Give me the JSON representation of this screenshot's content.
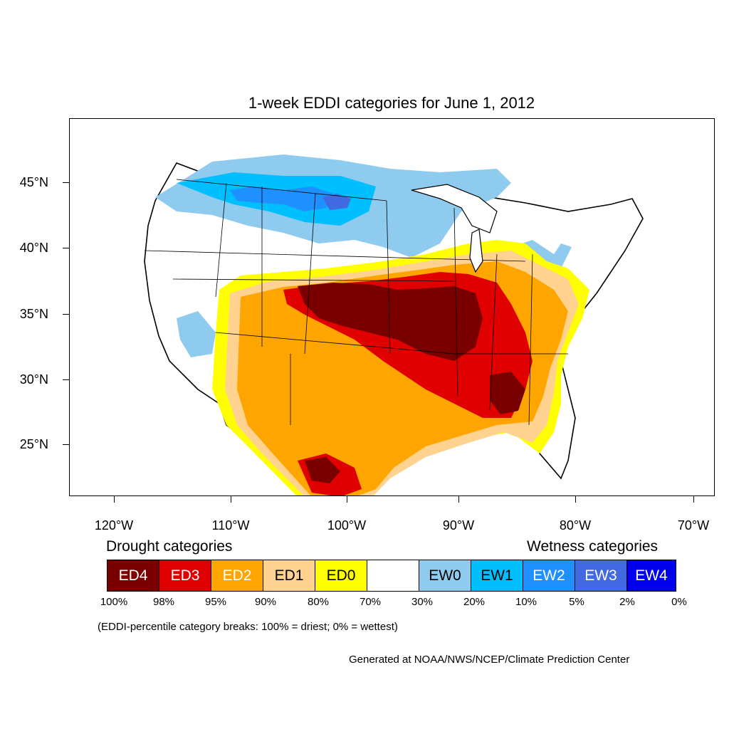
{
  "title": "1-week EDDI categories for June 1, 2012",
  "lat_labels": [
    "45°N",
    "40°N",
    "35°N",
    "30°N",
    "25°N"
  ],
  "lon_labels": [
    "120°W",
    "110°W",
    "100°W",
    "90°W",
    "80°W",
    "70°W"
  ],
  "legend": {
    "drought_heading": "Drought categories",
    "wetness_heading": "Wetness categories",
    "categories": [
      {
        "label": "ED4",
        "color": "#7a0000",
        "text_color": "#ffffff"
      },
      {
        "label": "ED3",
        "color": "#e00000",
        "text_color": "#ffffff"
      },
      {
        "label": "ED2",
        "color": "#ffa500",
        "text_color": "#ffffff"
      },
      {
        "label": "ED1",
        "color": "#ffd38f",
        "text_color": "#000000"
      },
      {
        "label": "ED0",
        "color": "#ffff00",
        "text_color": "#000000"
      },
      {
        "label": "",
        "color": "#ffffff",
        "text_color": "#000000"
      },
      {
        "label": "EW0",
        "color": "#8fcbef",
        "text_color": "#000000"
      },
      {
        "label": "EW1",
        "color": "#00bfff",
        "text_color": "#000000"
      },
      {
        "label": "EW2",
        "color": "#1e90ff",
        "text_color": "#ffffff"
      },
      {
        "label": "EW3",
        "color": "#4169e1",
        "text_color": "#ffffff"
      },
      {
        "label": "EW4",
        "color": "#0000ee",
        "text_color": "#ffffff"
      }
    ],
    "breaks": [
      "100%",
      "98%",
      "95%",
      "90%",
      "80%",
      "70%",
      "30%",
      "20%",
      "10%",
      "5%",
      "2%",
      "0%"
    ]
  },
  "note": "(EDDI-percentile category breaks: 100% = driest; 0% = wettest)",
  "credit": "Generated at NOAA/NWS/NCEP/Climate Prediction Center"
}
